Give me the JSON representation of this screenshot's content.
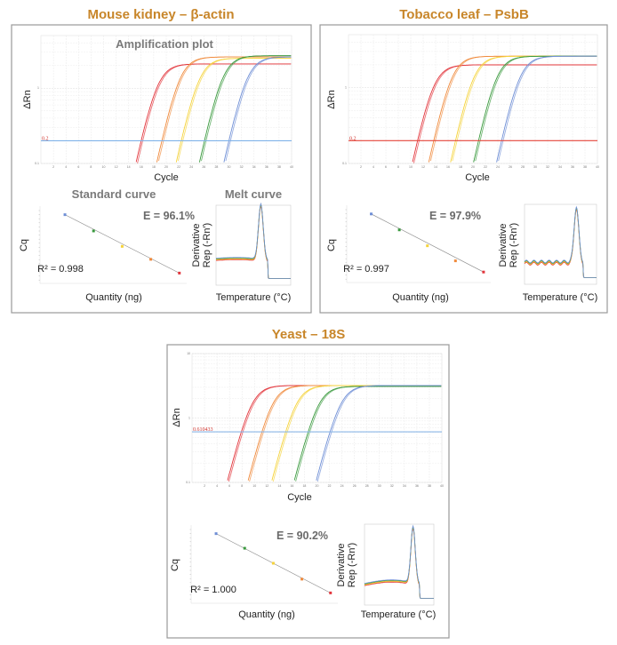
{
  "chart_data": [
    {
      "panel_title": "Mouse kidney – β-actin",
      "amplification": {
        "type": "line",
        "title": "Amplification plot",
        "xlabel": "Cycle",
        "ylabel": "ΔRn",
        "xlim": [
          0,
          40
        ],
        "ylim": [
          0.1,
          5
        ],
        "y_scale": "log",
        "ytick_labels": [
          "1",
          "0.1"
        ],
        "grid": true,
        "threshold": 0.2,
        "threshold_label": "0.2",
        "threshold_color": "#7fb2e8",
        "series": [
          {
            "color": "#e2343b",
            "ct": 16.0,
            "plateau": 2.1
          },
          {
            "color": "#f08a3c",
            "ct": 19.3,
            "plateau": 2.6
          },
          {
            "color": "#f5d33a",
            "ct": 22.4,
            "plateau": 2.5
          },
          {
            "color": "#3a9a3e",
            "ct": 26.1,
            "plateau": 2.7
          },
          {
            "color": "#6f8fd6",
            "ct": 30.0,
            "plateau": 2.6
          }
        ]
      },
      "standard_curve": {
        "type": "scatter",
        "title": "Standard curve",
        "xlabel": "Quantity (ng)",
        "ylabel": "Cq",
        "efficiency_label": "E = 96.1%",
        "r2_label": "R² = 0.998",
        "points": [
          {
            "color": "#6f8fd6",
            "cq": 30.0
          },
          {
            "color": "#3a9a3e",
            "cq": 26.1
          },
          {
            "color": "#f5d33a",
            "cq": 22.4
          },
          {
            "color": "#f08a3c",
            "cq": 19.3
          },
          {
            "color": "#e2343b",
            "cq": 16.0
          }
        ]
      },
      "melt_curve": {
        "type": "line",
        "title": "Melt curve",
        "xlabel": "Temperature (°C)",
        "ylabel_line1": "Derivative",
        "ylabel_line2": "Rep (-Rn′)"
      }
    },
    {
      "panel_title": "Tobacco leaf – PsbB",
      "amplification": {
        "type": "line",
        "title": "",
        "xlabel": "Cycle",
        "ylabel": "ΔRn",
        "xlim": [
          0,
          40
        ],
        "ylim": [
          0.1,
          5
        ],
        "y_scale": "log",
        "ytick_labels": [
          "1",
          "0.1"
        ],
        "grid": true,
        "threshold": 0.2,
        "threshold_label": "0.2",
        "threshold_color": "#e5443a",
        "series": [
          {
            "color": "#e2343b",
            "ct": 11.1,
            "plateau": 2.0
          },
          {
            "color": "#f08a3c",
            "ct": 13.7,
            "plateau": 2.6
          },
          {
            "color": "#f5d33a",
            "ct": 17.2,
            "plateau": 2.6
          },
          {
            "color": "#3a9a3e",
            "ct": 20.9,
            "plateau": 2.6
          },
          {
            "color": "#6f8fd6",
            "ct": 24.6,
            "plateau": 2.6
          }
        ]
      },
      "standard_curve": {
        "type": "scatter",
        "title": "",
        "xlabel": "Quantity (ng)",
        "ylabel": "Cq",
        "efficiency_label": "E = 97.9%",
        "r2_label": "R² = 0.997",
        "points": [
          {
            "color": "#6f8fd6",
            "cq": 24.6
          },
          {
            "color": "#3a9a3e",
            "cq": 20.9
          },
          {
            "color": "#f5d33a",
            "cq": 17.2
          },
          {
            "color": "#f08a3c",
            "cq": 13.7
          },
          {
            "color": "#e2343b",
            "cq": 11.1
          }
        ]
      },
      "melt_curve": {
        "type": "line",
        "title": "",
        "xlabel": "Temperature (°C)",
        "ylabel_line1": "Derivative",
        "ylabel_line2": "Rep (-Rn′)"
      }
    },
    {
      "panel_title": "Yeast – 18S",
      "amplification": {
        "type": "line",
        "title": "",
        "xlabel": "Cycle",
        "ylabel": "ΔRn",
        "xlim": [
          0,
          40
        ],
        "ylim": [
          0.1,
          10
        ],
        "y_scale": "log",
        "ytick_labels": [
          "10",
          "1",
          "0.1"
        ],
        "grid": true,
        "threshold": 0.610433,
        "threshold_label": "0.610433",
        "threshold_color": "#8cb8e8",
        "series": [
          {
            "color": "#e2343b",
            "ct": 7.9,
            "plateau": 3.2
          },
          {
            "color": "#f08a3c",
            "ct": 11.2,
            "plateau": 3.2
          },
          {
            "color": "#f5d33a",
            "ct": 15.0,
            "plateau": 3.2
          },
          {
            "color": "#3a9a3e",
            "ct": 18.6,
            "plateau": 3.1
          },
          {
            "color": "#6f8fd6",
            "ct": 22.1,
            "plateau": 3.2
          }
        ]
      },
      "standard_curve": {
        "type": "scatter",
        "title": "",
        "xlabel": "Quantity (ng)",
        "ylabel": "Cq",
        "efficiency_label": "E = 90.2%",
        "r2_label": "R² = 1.000",
        "points": [
          {
            "color": "#6f8fd6",
            "cq": 22.1
          },
          {
            "color": "#3a9a3e",
            "cq": 18.6
          },
          {
            "color": "#f5d33a",
            "cq": 15.0
          },
          {
            "color": "#f08a3c",
            "cq": 11.2
          },
          {
            "color": "#e2343b",
            "cq": 7.9
          }
        ]
      },
      "melt_curve": {
        "type": "line",
        "title": "",
        "xlabel": "Temperature (°C)",
        "ylabel_line1": "Derivative",
        "ylabel_line2": "Rep (-Rn′)"
      }
    }
  ]
}
